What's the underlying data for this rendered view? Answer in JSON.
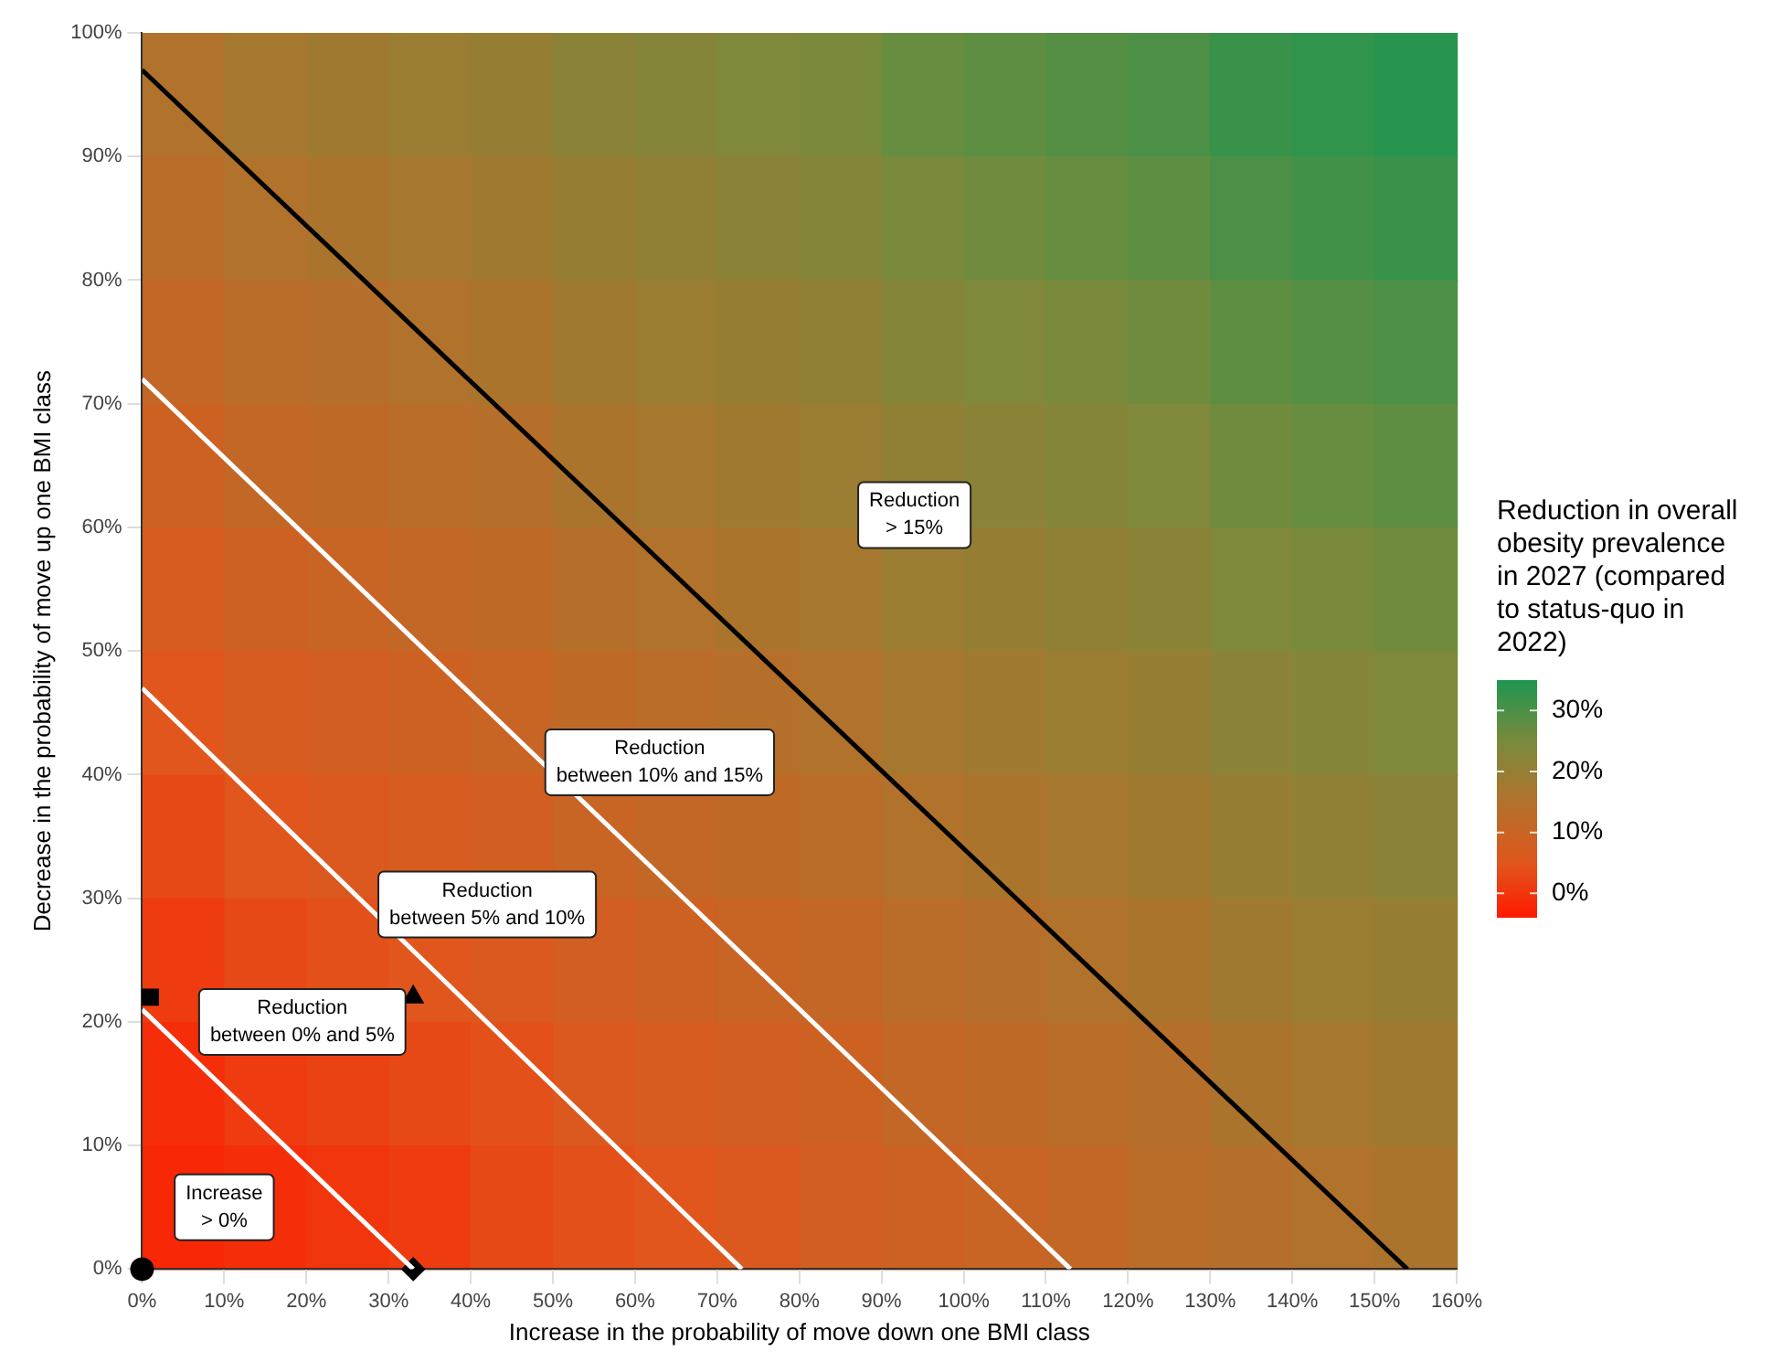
{
  "chart_data": [
    {
      "type": "heatmap",
      "legend_title": "Reduction in overall obesity prevalence in 2027 (compared to status-quo in 2022)",
      "categories": [
        null,
        null,
        null,
        null,
        null,
        null,
        null,
        null,
        null,
        null,
        null,
        null,
        null,
        null,
        null,
        null
      ],
      "y_categories": [
        null,
        null,
        null,
        null,
        null,
        null,
        null,
        null,
        null,
        null
      ],
      "cells": [
        [
          15,
          17,
          18,
          19,
          20,
          22,
          23,
          24,
          25,
          27,
          28,
          29,
          30,
          32,
          33,
          34
        ],
        [
          13,
          15,
          16,
          17,
          18,
          20,
          21,
          22,
          23,
          25,
          26,
          27,
          28,
          30,
          31,
          32
        ],
        [
          11,
          13,
          14,
          15,
          16,
          18,
          19,
          20,
          21,
          23,
          24,
          25,
          26,
          28,
          29,
          30
        ],
        [
          9,
          11,
          12,
          13,
          14,
          16,
          17,
          18,
          19,
          21,
          22,
          23,
          24,
          26,
          27,
          28
        ],
        [
          7,
          9,
          10,
          11,
          12,
          14,
          15,
          16,
          17,
          19,
          20,
          21,
          22,
          24,
          25,
          26
        ],
        [
          5,
          7,
          8,
          9,
          10,
          12,
          13,
          14,
          15,
          17,
          18,
          19,
          20,
          22,
          23,
          24
        ],
        [
          3,
          5,
          6,
          7,
          8,
          10,
          11,
          12,
          13,
          15,
          16,
          17,
          18,
          20,
          21,
          22
        ],
        [
          1,
          3,
          4,
          5,
          6,
          8,
          9,
          10,
          11,
          13,
          14,
          15,
          16,
          18,
          19,
          20
        ],
        [
          -1,
          1,
          2,
          3,
          4,
          6,
          7,
          8,
          9,
          11,
          12,
          13,
          14,
          16,
          17,
          18
        ],
        [
          -2,
          -1,
          0,
          1,
          3,
          4,
          5,
          6,
          8,
          9,
          10,
          11,
          13,
          14,
          15,
          16
        ]
      ],
      "clim": [
        -4,
        35
      ],
      "cticks": [
        {
          "value": 0,
          "label": "0%"
        },
        {
          "value": 10,
          "label": "10%"
        },
        {
          "value": 20,
          "label": "20%"
        },
        {
          "value": 30,
          "label": "30%"
        }
      ]
    },
    {
      "type": "line",
      "xlabel": "Increase in the probability of move down one BMI class",
      "ylabel": "Decrease in the probability of move up one BMI class",
      "xlim": [
        0,
        160
      ],
      "xticks": [
        {
          "value": 0,
          "label": "0%"
        },
        {
          "value": 10,
          "label": "10%"
        },
        {
          "value": 20,
          "label": "20%"
        },
        {
          "value": 30,
          "label": "30%"
        },
        {
          "value": 40,
          "label": "40%"
        },
        {
          "value": 50,
          "label": "50%"
        },
        {
          "value": 60,
          "label": "60%"
        },
        {
          "value": 70,
          "label": "70%"
        },
        {
          "value": 80,
          "label": "80%"
        },
        {
          "value": 90,
          "label": "90%"
        },
        {
          "value": 100,
          "label": "100%"
        },
        {
          "value": 110,
          "label": "110%"
        },
        {
          "value": 120,
          "label": "120%"
        },
        {
          "value": 130,
          "label": "130%"
        },
        {
          "value": 140,
          "label": "140%"
        },
        {
          "value": 150,
          "label": "150%"
        },
        {
          "value": 160,
          "label": "160%"
        }
      ],
      "ylim": [
        0,
        100
      ],
      "yticks": [
        {
          "value": 0,
          "label": "0%"
        },
        {
          "value": 10,
          "label": "10%"
        },
        {
          "value": 20,
          "label": "20%"
        },
        {
          "value": 30,
          "label": "30%"
        },
        {
          "value": 40,
          "label": "40%"
        },
        {
          "value": 50,
          "label": "50%"
        },
        {
          "value": 60,
          "label": "60%"
        },
        {
          "value": 70,
          "label": "70%"
        },
        {
          "value": 80,
          "label": "80%"
        },
        {
          "value": 90,
          "label": "90%"
        },
        {
          "value": 100,
          "label": "100%"
        }
      ],
      "series": [
        {
          "color": "#ffffff",
          "x": [
            0,
            33
          ],
          "values": [
            21,
            0
          ]
        },
        {
          "color": "#ffffff",
          "x": [
            0,
            73
          ],
          "values": [
            47,
            0
          ]
        },
        {
          "color": "#ffffff",
          "x": [
            0,
            113
          ],
          "values": [
            72,
            0
          ]
        },
        {
          "color": "#000000",
          "x": [
            0,
            154
          ],
          "values": [
            97,
            0
          ]
        },
        {
          "type": "scatter",
          "color": "#000000",
          "marker": "circle",
          "x": [
            0
          ],
          "values": [
            0
          ]
        },
        {
          "type": "scatter",
          "color": "#000000",
          "marker": "square",
          "x": [
            1
          ],
          "values": [
            22
          ]
        },
        {
          "type": "scatter",
          "color": "#000000",
          "marker": "triangle",
          "x": [
            33
          ],
          "values": [
            22
          ]
        },
        {
          "type": "scatter",
          "color": "#000000",
          "marker": "diamond",
          "x": [
            33
          ],
          "values": [
            0
          ]
        }
      ],
      "annotations": [
        "Increase\n> 0%",
        "Reduction\nbetween 0% and 5%",
        "Reduction\nbetween 5% and 10%",
        "Reduction\nbetween 10% and 15%",
        "Reduction\n> 15%"
      ]
    }
  ]
}
